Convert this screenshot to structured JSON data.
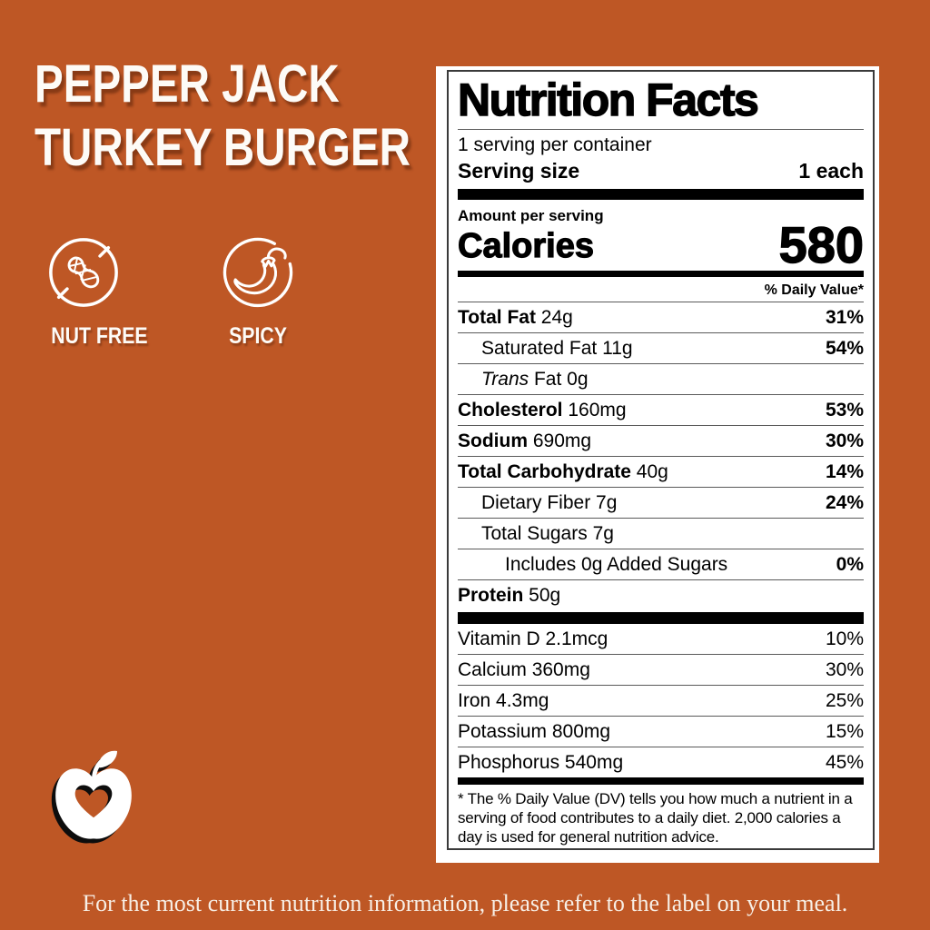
{
  "colors": {
    "background": "#BE5725",
    "card": "#FFFFFF",
    "ink": "#000000",
    "text_on_orange": "#FDFBF7"
  },
  "title": {
    "line1": "PEPPER JACK",
    "line2": "TURKEY BURGER"
  },
  "badges": [
    {
      "icon": "nut-free-icon",
      "label": "NUT FREE"
    },
    {
      "icon": "spicy-icon",
      "label": "SPICY"
    }
  ],
  "label": {
    "title": "Nutrition Facts",
    "servings_per_container": "1 serving per container",
    "serving_size_label": "Serving size",
    "serving_size_value": "1 each",
    "amount_per_serving": "Amount per serving",
    "calories_label": "Calories",
    "calories_value": "580",
    "daily_value_header": "% Daily Value*",
    "nutrients": [
      {
        "name": "Total Fat",
        "amount": "24g",
        "dv": "31%",
        "bold": true,
        "indent": 0
      },
      {
        "name": "Saturated Fat",
        "amount": "11g",
        "dv": "54%",
        "bold": false,
        "indent": 1
      },
      {
        "italic": "Trans",
        "name": " Fat",
        "amount": "0g",
        "dv": "",
        "bold": false,
        "indent": 1
      },
      {
        "name": "Cholesterol",
        "amount": "160mg",
        "dv": "53%",
        "bold": true,
        "indent": 0
      },
      {
        "name": "Sodium",
        "amount": "690mg",
        "dv": "30%",
        "bold": true,
        "indent": 0
      },
      {
        "name": "Total Carbohydrate",
        "amount": "40g",
        "dv": "14%",
        "bold": true,
        "indent": 0
      },
      {
        "name": "Dietary Fiber",
        "amount": "7g",
        "dv": "24%",
        "bold": false,
        "indent": 1
      },
      {
        "name": "Total Sugars",
        "amount": "7g",
        "dv": "",
        "bold": false,
        "indent": 1
      },
      {
        "name": "Includes 0g Added Sugars",
        "amount": "",
        "dv": "0%",
        "bold": false,
        "indent": 2
      },
      {
        "name": "Protein",
        "amount": "50g",
        "dv": "",
        "bold": true,
        "indent": 0
      }
    ],
    "vitamins": [
      {
        "name": "Vitamin D",
        "amount": "2.1mcg",
        "dv": "10%"
      },
      {
        "name": "Calcium",
        "amount": "360mg",
        "dv": "30%"
      },
      {
        "name": "Iron",
        "amount": "4.3mg",
        "dv": "25%"
      },
      {
        "name": "Potassium",
        "amount": "800mg",
        "dv": "15%"
      },
      {
        "name": "Phosphorus",
        "amount": "540mg",
        "dv": "45%"
      }
    ],
    "footnote": "* The % Daily Value (DV) tells you how much a nutrient in a serving of food contributes to a daily diet. 2,000 calories a day is used for general nutrition advice."
  },
  "logo": "apple-heart-logo",
  "footer": "For the most current nutrition information, please refer to the label on your meal."
}
